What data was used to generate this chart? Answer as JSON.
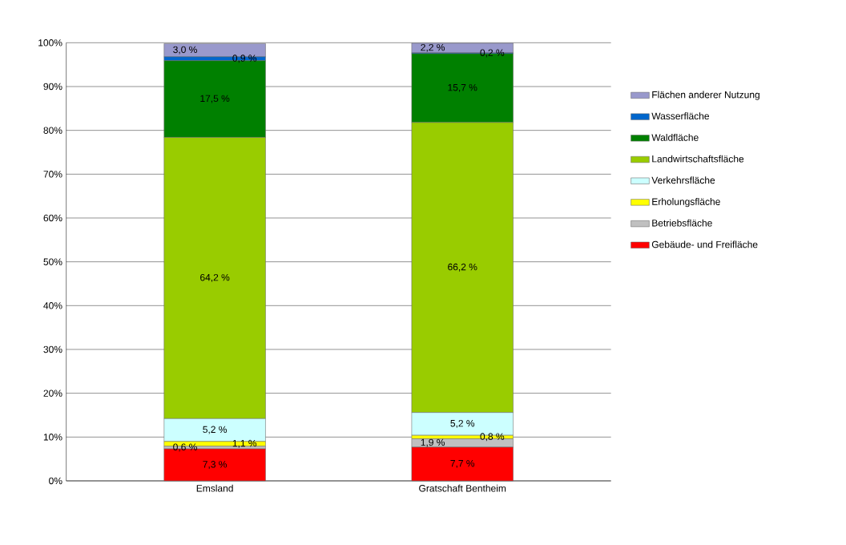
{
  "chart_data": {
    "type": "bar",
    "stacked": true,
    "categories": [
      "Emsland",
      "Gratschaft Bentheim"
    ],
    "series": [
      {
        "name": "Gebäude- und Freifläche",
        "color": "#ff0000",
        "values": [
          7.3,
          7.7
        ],
        "value_labels": [
          "7,3 %",
          "7,7 %"
        ]
      },
      {
        "name": "Betriebsfläche",
        "color": "#c0c0c0",
        "values": [
          0.6,
          1.9
        ],
        "value_labels": [
          "0,6 %",
          "1,9 %"
        ]
      },
      {
        "name": "Erholungsfläche",
        "color": "#ffff00",
        "values": [
          1.1,
          0.8
        ],
        "value_labels": [
          "1,1 %",
          "0,8 %"
        ]
      },
      {
        "name": "Verkehrsfläche",
        "color": "#ccffff",
        "values": [
          5.2,
          5.2
        ],
        "value_labels": [
          "5,2 %",
          "5,2 %"
        ]
      },
      {
        "name": "Landwirtschaftsfläche",
        "color": "#99cc00",
        "values": [
          64.2,
          66.2
        ],
        "value_labels": [
          "64,2 %",
          "66,2 %"
        ]
      },
      {
        "name": "Waldfläche",
        "color": "#008000",
        "values": [
          17.5,
          15.7
        ],
        "value_labels": [
          "17,5 %",
          "15,7 %"
        ]
      },
      {
        "name": "Wasserfläche",
        "color": "#0066cc",
        "values": [
          0.9,
          0.2
        ],
        "value_labels": [
          "0,9 %",
          "0,2 %"
        ]
      },
      {
        "name": "Flächen anderer Nutzung",
        "color": "#9999cc",
        "values": [
          3.0,
          2.2
        ],
        "value_labels": [
          "3,0 %",
          "2,2 %"
        ]
      }
    ],
    "ylim": [
      0,
      100
    ],
    "yticks": [
      {
        "value": 0,
        "label": "0%"
      },
      {
        "value": 10,
        "label": "10%"
      },
      {
        "value": 20,
        "label": "20%"
      },
      {
        "value": 30,
        "label": "30%"
      },
      {
        "value": 40,
        "label": "40%"
      },
      {
        "value": 50,
        "label": "50%"
      },
      {
        "value": 60,
        "label": "60%"
      },
      {
        "value": 70,
        "label": "70%"
      },
      {
        "value": 80,
        "label": "80%"
      },
      {
        "value": 90,
        "label": "90%"
      },
      {
        "value": 100,
        "label": "100%"
      }
    ],
    "grid": "y",
    "legend": "right"
  }
}
